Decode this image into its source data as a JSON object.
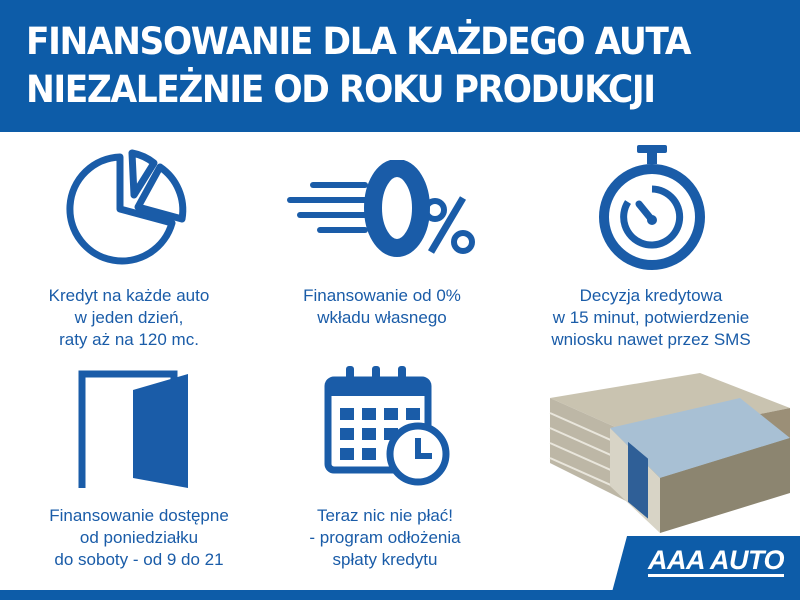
{
  "header": {
    "line1": "FINANSOWANIE DLA KAŻDEGO AUTA",
    "line2": "NIEZALEŻNIE OD ROKU PRODUKCJI"
  },
  "features": [
    {
      "icon": "pie-chart-icon",
      "lines": [
        "Kredyt na każde auto",
        "w jeden dzień,",
        "raty aż na 120 mc."
      ]
    },
    {
      "icon": "zero-percent-icon",
      "lines": [
        "Finansowanie od 0%",
        "wkładu własnego"
      ]
    },
    {
      "icon": "stopwatch-icon",
      "lines": [
        "Decyzja kredytowa",
        "w 15 minut, potwierdzenie",
        "wniosku nawet przez SMS"
      ]
    },
    {
      "icon": "open-door-icon",
      "lines": [
        "Finansowanie dostępne",
        "od poniedziałku",
        "do soboty - od 9 do 21"
      ]
    },
    {
      "icon": "calendar-clock-icon",
      "lines": [
        "Teraz nic nie płać!",
        "- program odłożenia",
        "spłaty kredytu"
      ]
    }
  ],
  "logo": {
    "text": "AAA AUTO"
  },
  "colors": {
    "brand_blue": "#0d5ca8",
    "text_blue": "#1a5ca8"
  }
}
